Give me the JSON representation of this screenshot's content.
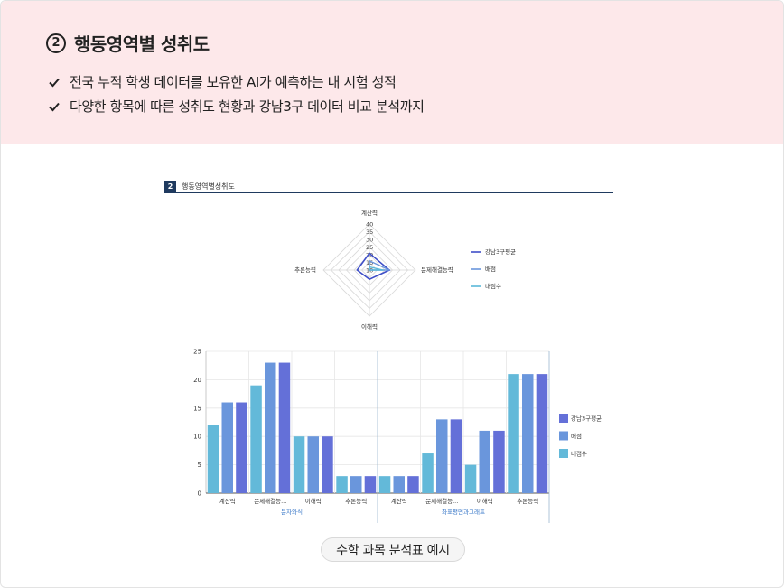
{
  "header": {
    "section_number": "2",
    "title": "행동영역별 성취도",
    "bullets": [
      "전국 누적 학생 데이터를 보유한 AI가 예측하는 내 시험 성적",
      "다양한 항목에 따른 성취도 현황과 강남3구 데이터 비교 분석까지"
    ]
  },
  "report": {
    "number": "2",
    "title": "행동영역별성취도"
  },
  "caption": "수학 과목 분석표 예시",
  "colors": {
    "header_bg": "#fde8ea",
    "gangnam": "#6470d8",
    "full": "#6a96dc",
    "mine": "#63b9d9",
    "radar_gangnam": "#3f4fc8",
    "radar_mine": "#5ab8d8"
  },
  "chart_data": [
    {
      "type": "radar",
      "axes": [
        "계산력",
        "문제해결능력",
        "이해력",
        "추론능력"
      ],
      "ticks": [
        "40",
        "35",
        "30",
        "25",
        "20",
        "15",
        "10"
      ],
      "range": [
        10,
        40
      ],
      "series": [
        {
          "name": "강남3구평균",
          "values": [
            21,
            23,
            16,
            18
          ]
        },
        {
          "name": "배점",
          "values": [
            16,
            23,
            10,
            3
          ]
        },
        {
          "name": "내점수",
          "values": [
            12,
            19,
            10,
            3
          ]
        }
      ],
      "legend": "right"
    },
    {
      "type": "bar",
      "ylim": [
        0,
        25
      ],
      "yticks": [
        "0",
        "5",
        "10",
        "15",
        "20",
        "25"
      ],
      "groups": [
        {
          "name": "문자와식",
          "categories": [
            "계산력",
            "문제해결능...",
            "이해력",
            "추론능력"
          ],
          "series": [
            {
              "name": "내점수",
              "values": [
                12,
                19,
                10,
                3
              ]
            },
            {
              "name": "배점",
              "values": [
                16,
                23,
                10,
                3
              ]
            },
            {
              "name": "강남3구평균",
              "values": [
                16,
                23,
                10,
                3
              ]
            }
          ]
        },
        {
          "name": "좌표평면과그래프",
          "categories": [
            "계산력",
            "문제해결능...",
            "이해력",
            "추론능력"
          ],
          "series": [
            {
              "name": "내점수",
              "values": [
                3,
                7,
                5,
                21
              ]
            },
            {
              "name": "배점",
              "values": [
                3,
                13,
                11,
                21
              ]
            },
            {
              "name": "강남3구평균",
              "values": [
                3,
                13,
                11,
                21
              ]
            }
          ]
        }
      ],
      "legend_entries": [
        "강남3구평균",
        "배점",
        "내점수"
      ],
      "legend": "right",
      "grid": true
    }
  ]
}
